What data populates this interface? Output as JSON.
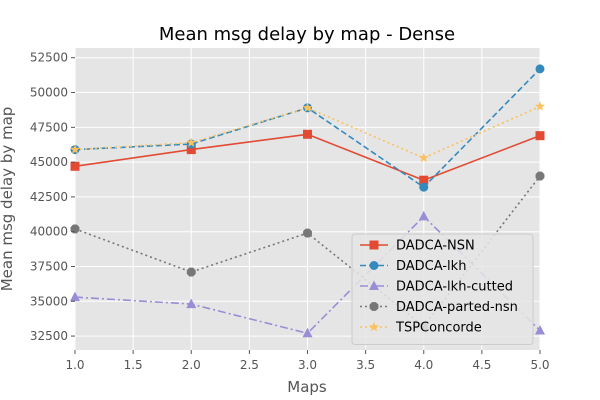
{
  "chart_data": {
    "type": "line",
    "title": "Mean msg delay by map - Dense",
    "xlabel": "Maps",
    "ylabel": "Mean msg delay by map",
    "xlim": [
      1.0,
      5.0
    ],
    "ylim": [
      31500,
      53200
    ],
    "x_ticks": [
      1.0,
      1.5,
      2.0,
      2.5,
      3.0,
      3.5,
      4.0,
      4.5,
      5.0
    ],
    "x_tick_labels": [
      "1.0",
      "1.5",
      "2.0",
      "2.5",
      "3.0",
      "3.5",
      "4.0",
      "4.5",
      "5.0"
    ],
    "y_ticks": [
      32500,
      35000,
      37500,
      40000,
      42500,
      45000,
      47500,
      50000,
      52500
    ],
    "y_tick_labels": [
      "32500",
      "35000",
      "37500",
      "40000",
      "42500",
      "45000",
      "47500",
      "50000",
      "52500"
    ],
    "grid": true,
    "legend_position": "lower-right",
    "x": [
      1,
      2,
      3,
      4,
      5
    ],
    "series": [
      {
        "name": "DADCA-NSN",
        "values": [
          44700,
          45900,
          47000,
          43700,
          46900
        ],
        "color": "#E24A33",
        "line": "solid",
        "marker": "square"
      },
      {
        "name": "DADCA-lkh",
        "values": [
          45900,
          46300,
          48900,
          43200,
          51700
        ],
        "color": "#348ABD",
        "line": "dashed",
        "marker": "circle"
      },
      {
        "name": "DADCA-lkh-cutted",
        "values": [
          35300,
          34800,
          32700,
          41100,
          32900
        ],
        "color": "#988ED5",
        "line": "dashdot",
        "marker": "triangle"
      },
      {
        "name": "DADCA-parted-nsn",
        "values": [
          40200,
          37100,
          39900,
          33200,
          44000
        ],
        "color": "#777777",
        "line": "dotted",
        "marker": "octagon"
      },
      {
        "name": "TSPConcorde",
        "values": [
          45900,
          46400,
          48900,
          45300,
          49000
        ],
        "color": "#FBC15E",
        "line": "dotted",
        "marker": "star"
      }
    ]
  }
}
